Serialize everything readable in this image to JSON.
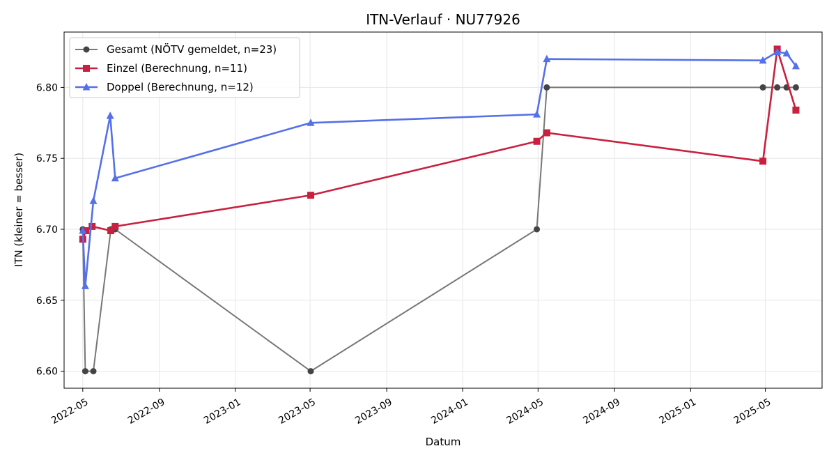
{
  "chart_data": {
    "type": "line",
    "title": "ITN-Verlauf · NU77926",
    "xlabel": "Datum",
    "ylabel": "ITN  (kleiner = besser)",
    "x_type": "date",
    "xlim": [
      "2022-04-01",
      "2025-07-31"
    ],
    "ylim": [
      6.588,
      6.839
    ],
    "xticks": [
      {
        "date": "2022-05-01",
        "label": "2022-05"
      },
      {
        "date": "2022-09-01",
        "label": "2022-09"
      },
      {
        "date": "2023-01-01",
        "label": "2023-01"
      },
      {
        "date": "2023-05-01",
        "label": "2023-05"
      },
      {
        "date": "2023-09-01",
        "label": "2023-09"
      },
      {
        "date": "2024-01-01",
        "label": "2024-01"
      },
      {
        "date": "2024-05-01",
        "label": "2024-05"
      },
      {
        "date": "2024-09-01",
        "label": "2024-09"
      },
      {
        "date": "2025-01-01",
        "label": "2025-01"
      },
      {
        "date": "2025-05-01",
        "label": "2025-05"
      }
    ],
    "yticks": [
      {
        "value": 6.6,
        "label": "6.60"
      },
      {
        "value": 6.65,
        "label": "6.65"
      },
      {
        "value": 6.7,
        "label": "6.70"
      },
      {
        "value": 6.75,
        "label": "6.75"
      },
      {
        "value": 6.8,
        "label": "6.80"
      }
    ],
    "grid": true,
    "legend_position": "top-left",
    "series": [
      {
        "name": "Gesamt (NÖTV gemeldet, n=23)",
        "key": "gesamt",
        "color": "#444444",
        "line_color": "#777777",
        "marker": "circle",
        "points": [
          {
            "x": "2022-05-01",
            "y": 6.7
          },
          {
            "x": "2022-05-05",
            "y": 6.6
          },
          {
            "x": "2022-05-18",
            "y": 6.6
          },
          {
            "x": "2022-06-15",
            "y": 6.7
          },
          {
            "x": "2022-06-22",
            "y": 6.7
          },
          {
            "x": "2023-05-02",
            "y": 6.6
          },
          {
            "x": "2024-04-29",
            "y": 6.7
          },
          {
            "x": "2024-05-15",
            "y": 6.8
          },
          {
            "x": "2025-04-27",
            "y": 6.8
          },
          {
            "x": "2025-05-20",
            "y": 6.8
          },
          {
            "x": "2025-06-04",
            "y": 6.8
          },
          {
            "x": "2025-06-19",
            "y": 6.8
          }
        ]
      },
      {
        "name": "Einzel (Berechnung, n=11)",
        "key": "einzel",
        "color": "#c8203f",
        "line_color": "#c8203f",
        "marker": "square",
        "points": [
          {
            "x": "2022-05-01",
            "y": 6.693
          },
          {
            "x": "2022-05-06",
            "y": 6.699
          },
          {
            "x": "2022-05-16",
            "y": 6.702
          },
          {
            "x": "2022-06-15",
            "y": 6.699
          },
          {
            "x": "2022-06-22",
            "y": 6.702
          },
          {
            "x": "2023-05-02",
            "y": 6.724
          },
          {
            "x": "2024-04-29",
            "y": 6.762
          },
          {
            "x": "2024-05-15",
            "y": 6.768
          },
          {
            "x": "2025-04-27",
            "y": 6.748
          },
          {
            "x": "2025-05-20",
            "y": 6.827
          },
          {
            "x": "2025-06-19",
            "y": 6.784
          }
        ]
      },
      {
        "name": "Doppel (Berechnung, n=12)",
        "key": "doppel",
        "color": "#5570e8",
        "line_color": "#5570e8",
        "marker": "triangle",
        "points": [
          {
            "x": "2022-05-01",
            "y": 6.699
          },
          {
            "x": "2022-05-05",
            "y": 6.66
          },
          {
            "x": "2022-05-18",
            "y": 6.72
          },
          {
            "x": "2022-06-14",
            "y": 6.78
          },
          {
            "x": "2022-06-22",
            "y": 6.736
          },
          {
            "x": "2023-05-02",
            "y": 6.775
          },
          {
            "x": "2024-04-29",
            "y": 6.781
          },
          {
            "x": "2024-05-15",
            "y": 6.82
          },
          {
            "x": "2025-04-27",
            "y": 6.819
          },
          {
            "x": "2025-05-20",
            "y": 6.825
          },
          {
            "x": "2025-06-04",
            "y": 6.824
          },
          {
            "x": "2025-06-19",
            "y": 6.815
          }
        ]
      }
    ]
  }
}
